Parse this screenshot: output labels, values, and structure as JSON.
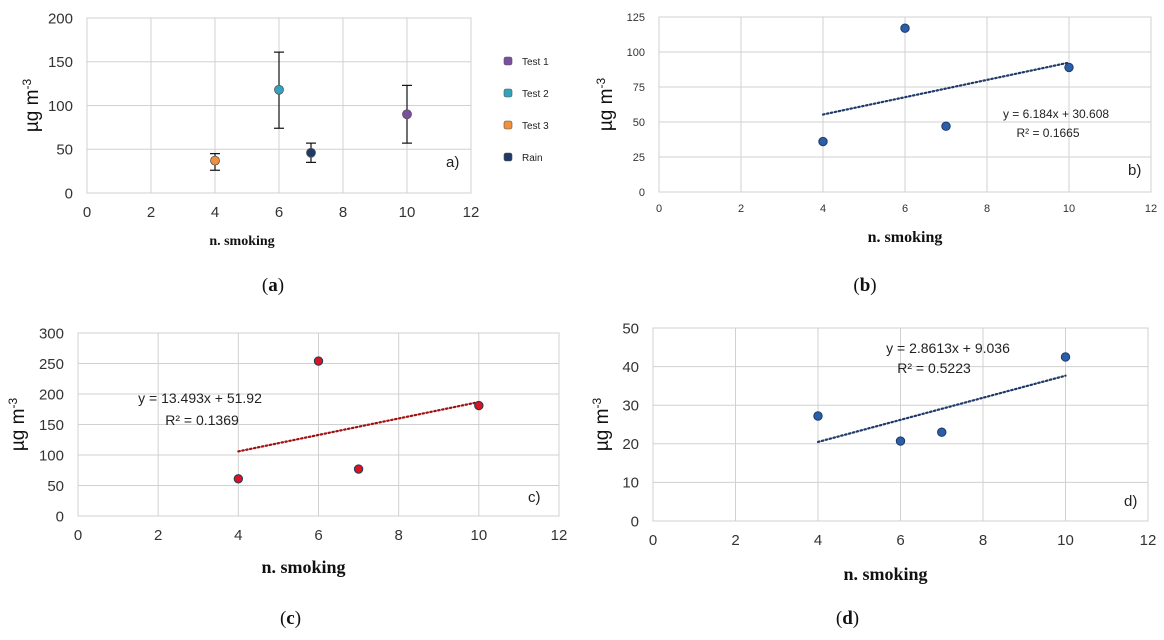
{
  "chart_data": [
    {
      "type": "scatter",
      "panel_letter": "a)",
      "caption": "(a)",
      "xlabel": "n. smoking",
      "ylabel": "µg m-3",
      "xlim": [
        0,
        12
      ],
      "ylim": [
        0,
        200
      ],
      "xticks": [
        0,
        2,
        4,
        6,
        8,
        10,
        12
      ],
      "yticks": [
        0,
        50,
        100,
        150,
        200
      ],
      "grid": true,
      "legend_position": "right",
      "series": [
        {
          "name": "Test 1",
          "color": "#7a4fa0",
          "points": [
            {
              "x": 10,
              "y": 90,
              "err_low": 57,
              "err_high": 123
            }
          ]
        },
        {
          "name": "Test 2",
          "color": "#33a3bd",
          "points": [
            {
              "x": 6,
              "y": 118,
              "err_low": 74,
              "err_high": 161
            }
          ]
        },
        {
          "name": "Test 3",
          "color": "#f0903c",
          "points": [
            {
              "x": 4,
              "y": 37,
              "err_low": 26,
              "err_high": 45
            }
          ]
        },
        {
          "name": "Rain",
          "color": "#1f3a68",
          "points": [
            {
              "x": 7,
              "y": 46,
              "err_low": 35,
              "err_high": 57
            }
          ]
        }
      ]
    },
    {
      "type": "scatter",
      "panel_letter": "b)",
      "caption": "(b)",
      "xlabel": "n. smoking",
      "ylabel": "µg m-3",
      "xlim": [
        0,
        12
      ],
      "ylim": [
        0,
        125
      ],
      "xticks": [
        0,
        2,
        4,
        6,
        8,
        10,
        12
      ],
      "yticks": [
        0,
        25,
        50,
        75,
        100,
        125
      ],
      "grid": true,
      "point_color": "#2a5ea8",
      "trend_color": "#1f3a68",
      "x": [
        4,
        6,
        7,
        10
      ],
      "y": [
        36,
        117,
        47,
        89
      ],
      "trendline": {
        "slope": 6.184,
        "intercept": 30.608,
        "x_range": [
          4,
          10
        ]
      },
      "equation": "y = 6.184x + 30.608",
      "r2": "R² = 0.1665"
    },
    {
      "type": "scatter",
      "panel_letter": "c)",
      "caption": "(c)",
      "xlabel": "n. smoking",
      "ylabel": "µg m-3",
      "xlim": [
        0,
        12
      ],
      "ylim": [
        0,
        300
      ],
      "xticks": [
        0,
        2,
        4,
        6,
        8,
        10,
        12
      ],
      "yticks": [
        0,
        50,
        100,
        150,
        200,
        250,
        300
      ],
      "grid": true,
      "point_color": "#d9141c",
      "trend_color": "#a01010",
      "x": [
        4,
        6,
        7,
        10
      ],
      "y": [
        61,
        254,
        77,
        181
      ],
      "trendline": {
        "slope": 13.493,
        "intercept": 51.92,
        "x_range": [
          4,
          10
        ]
      },
      "equation": "y = 13.493x + 51.92",
      "r2": "R² = 0.1369"
    },
    {
      "type": "scatter",
      "panel_letter": "d)",
      "caption": "(d)",
      "xlabel": "n. smoking",
      "ylabel": "µg m-3",
      "xlim": [
        0,
        12
      ],
      "ylim": [
        0,
        50
      ],
      "xticks": [
        0,
        2,
        4,
        6,
        8,
        10,
        12
      ],
      "yticks": [
        0,
        10,
        20,
        30,
        40,
        50
      ],
      "grid": true,
      "point_color": "#2a5ea8",
      "trend_color": "#1f3a68",
      "x": [
        4,
        6,
        7,
        10
      ],
      "y": [
        27.2,
        20.7,
        23.0,
        42.5
      ],
      "trendline": {
        "slope": 2.8613,
        "intercept": 9.036,
        "x_range": [
          4,
          10
        ]
      },
      "equation": "y = 2.8613x + 9.036",
      "r2": "R² = 0.5223"
    }
  ]
}
